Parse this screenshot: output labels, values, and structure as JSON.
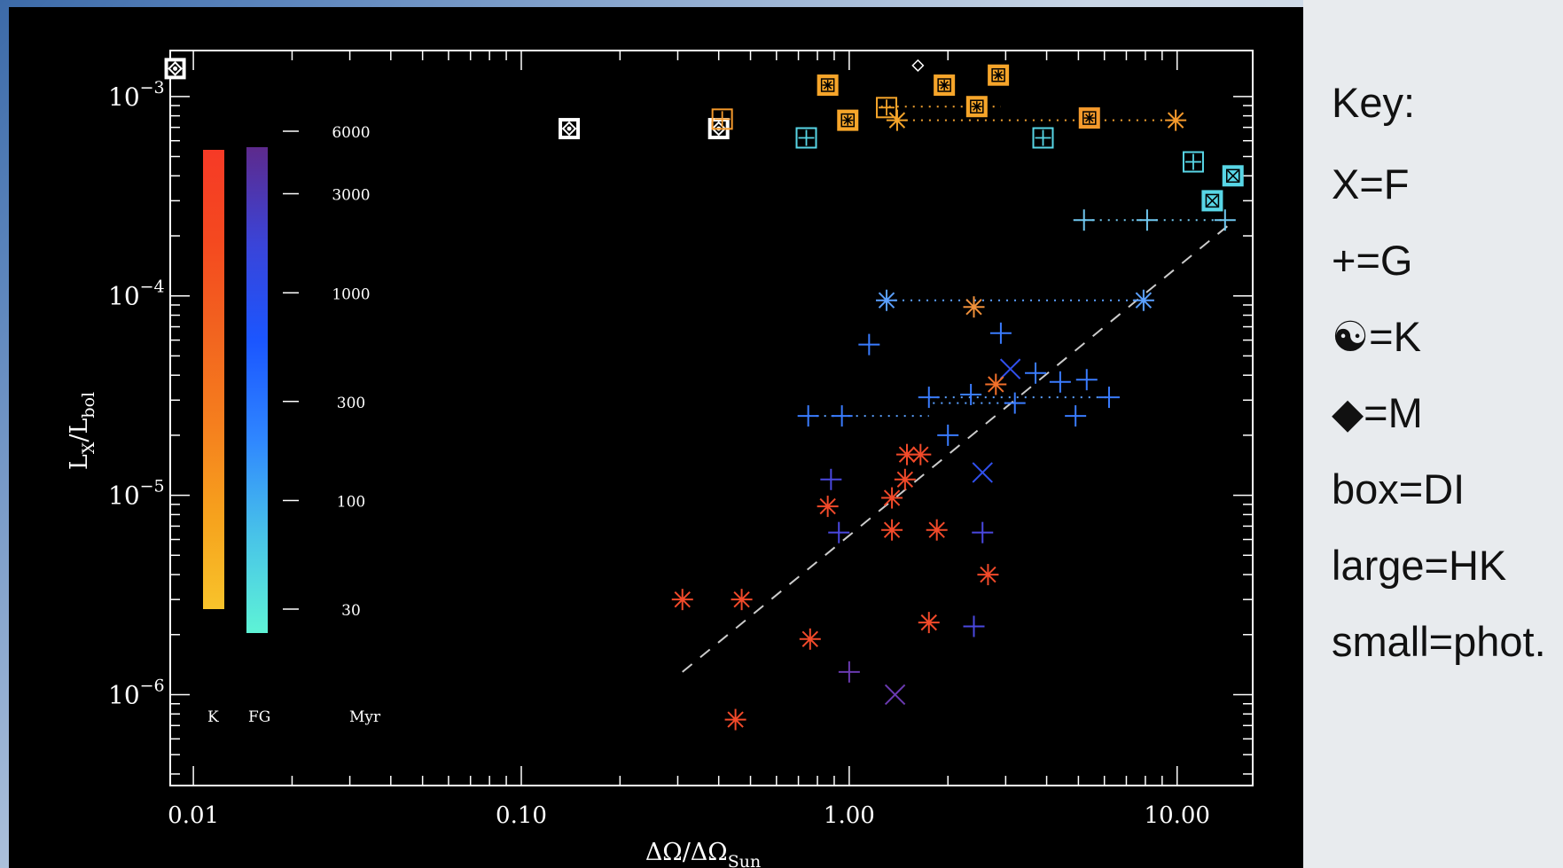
{
  "chart_data": {
    "type": "scatter",
    "xlabel": "ΔΩ/ΔΩ",
    "xlabel_sub": "Sun",
    "ylabel": "L",
    "ylabel_sub_x": "X",
    "ylabel_mid": "/L",
    "ylabel_sub_bol": "bol",
    "x_scale": "log",
    "y_scale": "log",
    "xlim": [
      0.0085,
      17
    ],
    "ylim": [
      3.5e-07,
      0.0017
    ],
    "x_ticks": [
      {
        "value": 0.01,
        "label": "0.01"
      },
      {
        "value": 0.1,
        "label": "0.10"
      },
      {
        "value": 1,
        "label": "1.00"
      },
      {
        "value": 10,
        "label": "10.00"
      }
    ],
    "y_ticks": [
      {
        "value": 0.001,
        "base": "10",
        "exp": "−3"
      },
      {
        "value": 0.0001,
        "base": "10",
        "exp": "−4"
      },
      {
        "value": 1e-05,
        "base": "10",
        "exp": "−5"
      },
      {
        "value": 1e-06,
        "base": "10",
        "exp": "−6"
      }
    ],
    "colorbar": {
      "k_label": "K",
      "fg_label": "FG",
      "unit_label": "Myr",
      "age_ticks": [
        {
          "age": 6000,
          "label": "6000"
        },
        {
          "age": 3000,
          "label": "3000"
        },
        {
          "age": 1000,
          "label": "1000"
        },
        {
          "age": 300,
          "label": "300"
        },
        {
          "age": 100,
          "label": "100"
        },
        {
          "age": 30,
          "label": "30"
        }
      ],
      "k_colors": [
        "#f63a26",
        "#f4491f",
        "#f2641f",
        "#f57f1e",
        "#f6a21d",
        "#f8c32b"
      ],
      "fg_colors": [
        "#5d2a8c",
        "#3a44d8",
        "#1b56ff",
        "#2f86ff",
        "#48c3e8",
        "#5ef3d6"
      ]
    },
    "trend_line": {
      "from": [
        0.31,
        1.3e-06
      ],
      "to": [
        15,
        0.00024
      ],
      "color": "#cccccc"
    },
    "ranges": [
      {
        "x1": 1.25,
        "x2": 2.9,
        "y": 0.00089,
        "color": "#f0a030"
      },
      {
        "x1": 1.4,
        "x2": 9.9,
        "y": 0.00076,
        "color": "#f0a030"
      },
      {
        "x1": 5.2,
        "x2": 14,
        "y": 0.00024,
        "color": "#70c8f0"
      },
      {
        "x1": 1.3,
        "x2": 7.9,
        "y": 9.5e-05,
        "color": "#5aa0ff"
      },
      {
        "x1": 0.75,
        "x2": 1.75,
        "y": 2.5e-05,
        "color": "#5aa0ff"
      },
      {
        "x1": 1.75,
        "x2": 6.2,
        "y": 3.1e-05,
        "color": "#5aa0ff"
      },
      {
        "x1": 1.8,
        "x2": 3.2,
        "y": 2.9e-05,
        "color": "#5aa0ff"
      }
    ],
    "points": [
      {
        "x": 0.0088,
        "y": 0.00138,
        "m": "box-diamond",
        "c": "#ffffff"
      },
      {
        "x": 0.14,
        "y": 0.00069,
        "m": "box-diamond",
        "c": "#ffffff"
      },
      {
        "x": 0.4,
        "y": 0.00069,
        "m": "box-diamond",
        "c": "#ffffff"
      },
      {
        "x": 0.41,
        "y": 0.00077,
        "m": "box-plus",
        "c": "#f59a2c"
      },
      {
        "x": 1.62,
        "y": 0.00143,
        "m": "diamond",
        "c": "#ffffff"
      },
      {
        "x": 0.74,
        "y": 0.00062,
        "m": "box-plus",
        "c": "#58d6e6"
      },
      {
        "x": 0.86,
        "y": 0.00114,
        "m": "box-star",
        "c": "#f6a52a"
      },
      {
        "x": 0.99,
        "y": 0.00076,
        "m": "box-star",
        "c": "#f6a52a"
      },
      {
        "x": 1.3,
        "y": 0.00088,
        "m": "box-plus",
        "c": "#f6a52a"
      },
      {
        "x": 1.4,
        "y": 0.00076,
        "m": "star",
        "c": "#f6a52a"
      },
      {
        "x": 1.95,
        "y": 0.00114,
        "m": "box-star",
        "c": "#f6a52a"
      },
      {
        "x": 2.45,
        "y": 0.00089,
        "m": "box-star",
        "c": "#f6a52a"
      },
      {
        "x": 2.85,
        "y": 0.00128,
        "m": "box-star",
        "c": "#f6a52a"
      },
      {
        "x": 3.9,
        "y": 0.00062,
        "m": "box-plus",
        "c": "#58d6e6"
      },
      {
        "x": 5.4,
        "y": 0.00078,
        "m": "box-star",
        "c": "#f59a2c"
      },
      {
        "x": 9.9,
        "y": 0.00076,
        "m": "star",
        "c": "#f59a2c"
      },
      {
        "x": 11.2,
        "y": 0.00047,
        "m": "box-plus",
        "c": "#58d6e6"
      },
      {
        "x": 12.8,
        "y": 0.0003,
        "m": "box-x",
        "c": "#58d6e6"
      },
      {
        "x": 14.8,
        "y": 0.0004,
        "m": "box-x",
        "c": "#58d6e6"
      },
      {
        "x": 5.2,
        "y": 0.00024,
        "m": "plus",
        "c": "#70c8f0"
      },
      {
        "x": 8.1,
        "y": 0.00024,
        "m": "plus",
        "c": "#70c8f0"
      },
      {
        "x": 14,
        "y": 0.00024,
        "m": "plus",
        "c": "#70c8f0"
      },
      {
        "x": 1.3,
        "y": 9.5e-05,
        "m": "star",
        "c": "#5aa0ff"
      },
      {
        "x": 7.9,
        "y": 9.5e-05,
        "m": "star",
        "c": "#5aa0ff"
      },
      {
        "x": 2.4,
        "y": 8.8e-05,
        "m": "star",
        "c": "#f0903a"
      },
      {
        "x": 2.9,
        "y": 6.5e-05,
        "m": "plus",
        "c": "#3a7cff"
      },
      {
        "x": 1.15,
        "y": 5.7e-05,
        "m": "plus",
        "c": "#3a7cff"
      },
      {
        "x": 3.1,
        "y": 4.3e-05,
        "m": "x",
        "c": "#3050ee"
      },
      {
        "x": 2.8,
        "y": 3.6e-05,
        "m": "star",
        "c": "#f2702a"
      },
      {
        "x": 3.7,
        "y": 4.1e-05,
        "m": "plus",
        "c": "#3a7cff"
      },
      {
        "x": 4.4,
        "y": 3.7e-05,
        "m": "plus",
        "c": "#3a7cff"
      },
      {
        "x": 5.3,
        "y": 3.8e-05,
        "m": "plus",
        "c": "#3a7cff"
      },
      {
        "x": 6.2,
        "y": 3.1e-05,
        "m": "plus",
        "c": "#3a7cff"
      },
      {
        "x": 1.75,
        "y": 3.1e-05,
        "m": "plus",
        "c": "#3a7cff"
      },
      {
        "x": 2.35,
        "y": 3.2e-05,
        "m": "plus",
        "c": "#3a7cff"
      },
      {
        "x": 3.2,
        "y": 2.9e-05,
        "m": "plus",
        "c": "#3a7cff"
      },
      {
        "x": 0.95,
        "y": 2.5e-05,
        "m": "plus",
        "c": "#3a7cff"
      },
      {
        "x": 4.9,
        "y": 2.5e-05,
        "m": "plus",
        "c": "#3a7cff"
      },
      {
        "x": 0.75,
        "y": 2.5e-05,
        "m": "plus",
        "c": "#3a7cff"
      },
      {
        "x": 2.0,
        "y": 2e-05,
        "m": "plus",
        "c": "#3a7cff"
      },
      {
        "x": 1.5,
        "y": 1.6e-05,
        "m": "star",
        "c": "#f24a2a"
      },
      {
        "x": 1.65,
        "y": 1.6e-05,
        "m": "star",
        "c": "#f24a2a"
      },
      {
        "x": 1.48,
        "y": 1.2e-05,
        "m": "star",
        "c": "#f24a2a"
      },
      {
        "x": 1.35,
        "y": 9.7e-06,
        "m": "star",
        "c": "#f24a2a"
      },
      {
        "x": 2.55,
        "y": 1.3e-05,
        "m": "x",
        "c": "#3050ee"
      },
      {
        "x": 0.88,
        "y": 1.2e-05,
        "m": "plus",
        "c": "#4a48e0"
      },
      {
        "x": 0.86,
        "y": 8.8e-06,
        "m": "star",
        "c": "#f24a2a"
      },
      {
        "x": 0.93,
        "y": 6.5e-06,
        "m": "plus",
        "c": "#4a48e0"
      },
      {
        "x": 1.35,
        "y": 6.7e-06,
        "m": "star",
        "c": "#f24a2a"
      },
      {
        "x": 1.85,
        "y": 6.7e-06,
        "m": "star",
        "c": "#f24a2a"
      },
      {
        "x": 2.55,
        "y": 6.5e-06,
        "m": "plus",
        "c": "#4a48e0"
      },
      {
        "x": 2.65,
        "y": 4e-06,
        "m": "star",
        "c": "#f24a2a"
      },
      {
        "x": 0.31,
        "y": 3e-06,
        "m": "star",
        "c": "#f24a2a"
      },
      {
        "x": 0.47,
        "y": 3e-06,
        "m": "star",
        "c": "#f24a2a"
      },
      {
        "x": 0.76,
        "y": 1.9e-06,
        "m": "star",
        "c": "#f24a2a"
      },
      {
        "x": 1.75,
        "y": 2.3e-06,
        "m": "star",
        "c": "#f24a2a"
      },
      {
        "x": 2.4,
        "y": 2.2e-06,
        "m": "plus",
        "c": "#4a48e0"
      },
      {
        "x": 1.0,
        "y": 1.3e-06,
        "m": "plus",
        "c": "#6a3ab0"
      },
      {
        "x": 1.38,
        "y": 1e-06,
        "m": "x",
        "c": "#6a3ab0"
      },
      {
        "x": 0.45,
        "y": 7.5e-07,
        "m": "star",
        "c": "#f24a2a"
      }
    ]
  },
  "key": {
    "title": "Key:",
    "items": [
      "X=F",
      "+=G",
      "☯=K",
      "◆=M",
      "box=DI",
      "large=HK",
      "small=phot."
    ]
  }
}
